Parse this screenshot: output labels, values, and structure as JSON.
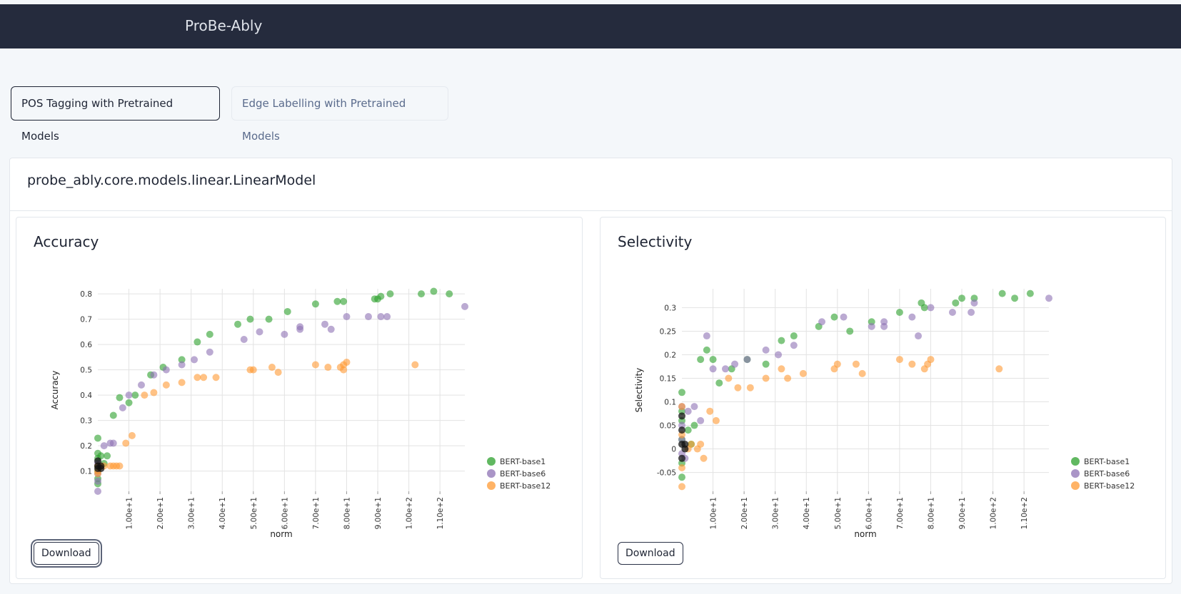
{
  "app": {
    "title": "ProBe-Ably"
  },
  "tabs": [
    {
      "label": "POS Tagging with Pretrained Models",
      "active": true
    },
    {
      "label": "Edge Labelling with Pretrained Models",
      "active": false
    }
  ],
  "model": {
    "title": "probe_ably.core.models.linear.LinearModel"
  },
  "download_label": "Download",
  "colors": {
    "BERT-base1": "#2ca02c",
    "BERT-base6": "#8e72b4",
    "BERT-base12": "#ff9933",
    "overlap": "#111111",
    "navbar": "#252b3d"
  },
  "chart_data": [
    {
      "type": "scatter",
      "title": "Accuracy",
      "xlabel": "norm",
      "ylabel": "Accuracy",
      "xlim": [
        0,
        118
      ],
      "ylim": [
        0.02,
        0.82
      ],
      "yticks": [
        "0.1",
        "0.2",
        "0.3",
        "0.4",
        "0.5",
        "0.6",
        "0.7",
        "0.8"
      ],
      "ytick_values": [
        0.1,
        0.2,
        0.3,
        0.4,
        0.5,
        0.6,
        0.7,
        0.8
      ],
      "xticks": [
        "1.00e+1",
        "2.00e+1",
        "3.00e+1",
        "4.00e+1",
        "5.00e+1",
        "6.00e+1",
        "7.00e+1",
        "8.00e+1",
        "9.00e+1",
        "1.00e+2",
        "1.10e+2"
      ],
      "xtick_values": [
        10,
        20,
        30,
        40,
        50,
        60,
        70,
        80,
        90,
        100,
        110
      ],
      "grid": true,
      "legend_position": "right-bottom",
      "series": [
        {
          "name": "BERT-base1",
          "points": [
            [
              0,
              0.23
            ],
            [
              0,
              0.17
            ],
            [
              0,
              0.15
            ],
            [
              0,
              0.12
            ],
            [
              0,
              0.1
            ],
            [
              0,
              0.07
            ],
            [
              0,
              0.05
            ],
            [
              1,
              0.16
            ],
            [
              2,
              0.13
            ],
            [
              3,
              0.16
            ],
            [
              5,
              0.32
            ],
            [
              7,
              0.39
            ],
            [
              10,
              0.37
            ],
            [
              12,
              0.4
            ],
            [
              17,
              0.48
            ],
            [
              21,
              0.51
            ],
            [
              27,
              0.54
            ],
            [
              32,
              0.61
            ],
            [
              36,
              0.64
            ],
            [
              45,
              0.68
            ],
            [
              49,
              0.7
            ],
            [
              55,
              0.7
            ],
            [
              61,
              0.73
            ],
            [
              70,
              0.76
            ],
            [
              77,
              0.77
            ],
            [
              79,
              0.77
            ],
            [
              89,
              0.78
            ],
            [
              90,
              0.78
            ],
            [
              91,
              0.79
            ],
            [
              94,
              0.8
            ],
            [
              104,
              0.8
            ],
            [
              108,
              0.81
            ],
            [
              113,
              0.8
            ]
          ]
        },
        {
          "name": "BERT-base6",
          "points": [
            [
              0,
              0.02
            ],
            [
              0,
              0.06
            ],
            [
              0,
              0.09
            ],
            [
              0,
              0.13
            ],
            [
              2,
              0.2
            ],
            [
              4,
              0.21
            ],
            [
              5,
              0.21
            ],
            [
              8,
              0.35
            ],
            [
              10,
              0.4
            ],
            [
              14,
              0.44
            ],
            [
              18,
              0.48
            ],
            [
              22,
              0.5
            ],
            [
              27,
              0.52
            ],
            [
              31,
              0.54
            ],
            [
              36,
              0.57
            ],
            [
              47,
              0.62
            ],
            [
              52,
              0.65
            ],
            [
              60,
              0.64
            ],
            [
              65,
              0.66
            ],
            [
              65,
              0.67
            ],
            [
              73,
              0.68
            ],
            [
              75,
              0.66
            ],
            [
              80,
              0.71
            ],
            [
              87,
              0.71
            ],
            [
              91,
              0.71
            ],
            [
              93,
              0.71
            ],
            [
              118,
              0.75
            ]
          ]
        },
        {
          "name": "BERT-base12",
          "points": [
            [
              0,
              0.09
            ],
            [
              0,
              0.12
            ],
            [
              0,
              0.1
            ],
            [
              1,
              0.12
            ],
            [
              2,
              0.12
            ],
            [
              4,
              0.12
            ],
            [
              5,
              0.12
            ],
            [
              6,
              0.12
            ],
            [
              7,
              0.12
            ],
            [
              9,
              0.21
            ],
            [
              11,
              0.24
            ],
            [
              15,
              0.4
            ],
            [
              18,
              0.41
            ],
            [
              22,
              0.44
            ],
            [
              27,
              0.45
            ],
            [
              32,
              0.47
            ],
            [
              34,
              0.47
            ],
            [
              38,
              0.47
            ],
            [
              49,
              0.5
            ],
            [
              50,
              0.5
            ],
            [
              56,
              0.51
            ],
            [
              58,
              0.49
            ],
            [
              70,
              0.52
            ],
            [
              74,
              0.51
            ],
            [
              78,
              0.51
            ],
            [
              79,
              0.5
            ],
            [
              79,
              0.52
            ],
            [
              80,
              0.53
            ],
            [
              102,
              0.52
            ]
          ]
        },
        {
          "name": "",
          "points": [
            [
              0,
              0.11
            ],
            [
              0,
              0.12
            ],
            [
              1,
              0.12
            ],
            [
              0,
              0.14
            ],
            [
              1,
              0.11
            ]
          ]
        }
      ]
    },
    {
      "type": "scatter",
      "title": "Selectivity",
      "xlabel": "norm",
      "ylabel": "Selectivity",
      "xlim": [
        0,
        118
      ],
      "ylim": [
        -0.09,
        0.34
      ],
      "yticks": [
        "-0.05",
        "0",
        "0.05",
        "0.1",
        "0.15",
        "0.2",
        "0.25",
        "0.3"
      ],
      "ytick_values": [
        -0.05,
        0,
        0.05,
        0.1,
        0.15,
        0.2,
        0.25,
        0.3
      ],
      "xticks": [
        "1.00e+1",
        "2.00e+1",
        "3.00e+1",
        "4.00e+1",
        "5.00e+1",
        "6.00e+1",
        "7.00e+1",
        "8.00e+1",
        "9.00e+1",
        "1.00e+2",
        "1.10e+2"
      ],
      "xtick_values": [
        10,
        20,
        30,
        40,
        50,
        60,
        70,
        80,
        90,
        100,
        110
      ],
      "grid": true,
      "legend_position": "right-bottom",
      "series": [
        {
          "name": "BERT-base1",
          "points": [
            [
              0,
              0.12
            ],
            [
              0,
              0.08
            ],
            [
              0,
              0.06
            ],
            [
              0,
              0.02
            ],
            [
              0,
              -0.03
            ],
            [
              0,
              -0.06
            ],
            [
              2,
              0.04
            ],
            [
              3,
              0.01
            ],
            [
              4,
              0.05
            ],
            [
              6,
              0.19
            ],
            [
              8,
              0.21
            ],
            [
              10,
              0.19
            ],
            [
              12,
              0.14
            ],
            [
              16,
              0.17
            ],
            [
              21,
              0.19
            ],
            [
              27,
              0.18
            ],
            [
              32,
              0.23
            ],
            [
              36,
              0.24
            ],
            [
              44,
              0.26
            ],
            [
              49,
              0.28
            ],
            [
              54,
              0.25
            ],
            [
              61,
              0.27
            ],
            [
              70,
              0.29
            ],
            [
              77,
              0.31
            ],
            [
              78,
              0.3
            ],
            [
              88,
              0.31
            ],
            [
              90,
              0.32
            ],
            [
              94,
              0.32
            ],
            [
              103,
              0.33
            ],
            [
              107,
              0.32
            ],
            [
              112,
              0.33
            ]
          ]
        },
        {
          "name": "BERT-base6",
          "points": [
            [
              0,
              0.09
            ],
            [
              0,
              0.05
            ],
            [
              0,
              0.02
            ],
            [
              0,
              -0.01
            ],
            [
              1,
              -0.02
            ],
            [
              2,
              0.08
            ],
            [
              4,
              0.09
            ],
            [
              6,
              0.06
            ],
            [
              8,
              0.24
            ],
            [
              10,
              0.17
            ],
            [
              14,
              0.17
            ],
            [
              17,
              0.18
            ],
            [
              21,
              0.19
            ],
            [
              27,
              0.21
            ],
            [
              31,
              0.2
            ],
            [
              36,
              0.22
            ],
            [
              45,
              0.27
            ],
            [
              52,
              0.28
            ],
            [
              61,
              0.26
            ],
            [
              65,
              0.26
            ],
            [
              65,
              0.27
            ],
            [
              74,
              0.28
            ],
            [
              76,
              0.24
            ],
            [
              80,
              0.3
            ],
            [
              87,
              0.29
            ],
            [
              93,
              0.29
            ],
            [
              94,
              0.31
            ],
            [
              118,
              0.32
            ]
          ]
        },
        {
          "name": "BERT-base12",
          "points": [
            [
              0,
              -0.08
            ],
            [
              0,
              -0.04
            ],
            [
              0,
              0.09
            ],
            [
              0,
              0.03
            ],
            [
              2,
              0.0
            ],
            [
              3,
              0.01
            ],
            [
              5,
              0.0
            ],
            [
              6,
              0.01
            ],
            [
              7,
              -0.02
            ],
            [
              9,
              0.08
            ],
            [
              11,
              0.06
            ],
            [
              15,
              0.15
            ],
            [
              18,
              0.13
            ],
            [
              22,
              0.13
            ],
            [
              27,
              0.15
            ],
            [
              32,
              0.17
            ],
            [
              34,
              0.15
            ],
            [
              39,
              0.16
            ],
            [
              49,
              0.17
            ],
            [
              50,
              0.18
            ],
            [
              56,
              0.18
            ],
            [
              58,
              0.16
            ],
            [
              70,
              0.19
            ],
            [
              74,
              0.18
            ],
            [
              78,
              0.17
            ],
            [
              79,
              0.18
            ],
            [
              80,
              0.19
            ],
            [
              102,
              0.17
            ]
          ]
        },
        {
          "name": "",
          "points": [
            [
              0,
              0.04
            ],
            [
              0,
              0.01
            ],
            [
              1,
              0.0
            ],
            [
              0,
              -0.02
            ],
            [
              0,
              0.07
            ],
            [
              1,
              0.01
            ]
          ]
        }
      ]
    }
  ]
}
